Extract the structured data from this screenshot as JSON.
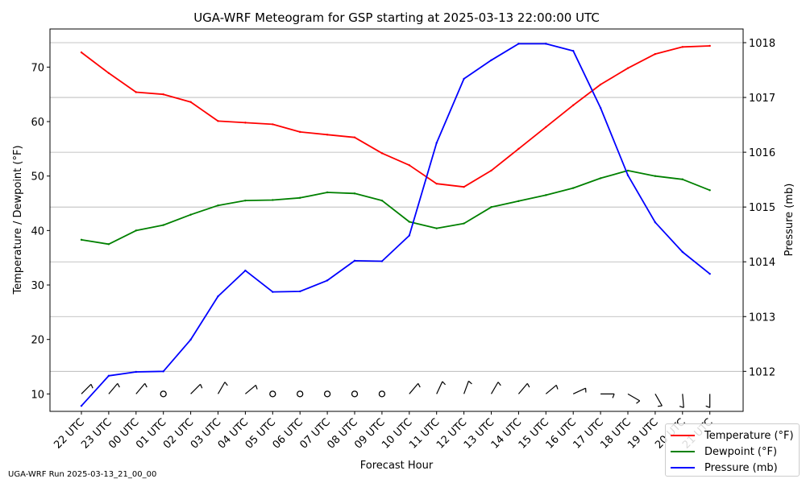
{
  "chart_data": {
    "type": "line",
    "title": "UGA-WRF Meteogram for GSP starting at 2025-03-13 22:00:00 UTC",
    "xlabel": "Forecast Hour",
    "ylabel_left": "Temperature / Dewpoint (°F)",
    "ylabel_right": "Pressure (mb)",
    "ylim_left": [
      6.8,
      77
    ],
    "ylim_right": [
      1011.27,
      1018.25
    ],
    "yticks_left": [
      10,
      20,
      30,
      40,
      50,
      60,
      70
    ],
    "yticks_right": [
      1012,
      1013,
      1014,
      1015,
      1016,
      1017,
      1018
    ],
    "grid": "horizontal (right axis)",
    "legend_position": "bottom-right",
    "categories": [
      "22 UTC",
      "23 UTC",
      "00 UTC",
      "01 UTC",
      "02 UTC",
      "03 UTC",
      "04 UTC",
      "05 UTC",
      "06 UTC",
      "07 UTC",
      "08 UTC",
      "09 UTC",
      "10 UTC",
      "11 UTC",
      "12 UTC",
      "13 UTC",
      "14 UTC",
      "15 UTC",
      "16 UTC",
      "17 UTC",
      "18 UTC",
      "19 UTC",
      "20 UTC",
      "21 UTC"
    ],
    "series": [
      {
        "name": "Temperature (°F)",
        "axis": "left",
        "color": "#ff0000",
        "values": [
          72.7,
          68.9,
          65.4,
          65.0,
          63.6,
          60.1,
          59.8,
          59.5,
          58.1,
          57.6,
          57.1,
          54.2,
          52.0,
          48.6,
          48.0,
          51.0,
          55.0,
          59.0,
          63.0,
          66.8,
          69.8,
          72.4,
          73.7,
          73.9
        ]
      },
      {
        "name": "Dewpoint (°F)",
        "axis": "left",
        "color": "#008000",
        "values": [
          38.3,
          37.5,
          40.0,
          41.0,
          42.9,
          44.6,
          45.5,
          45.6,
          46.0,
          47.0,
          46.8,
          45.5,
          41.6,
          40.4,
          41.3,
          44.3,
          45.4,
          46.5,
          47.8,
          49.6,
          51.0,
          50.0,
          49.4,
          47.4
        ]
      },
      {
        "name": "Pressure (mb)",
        "axis": "right",
        "color": "#0000ff",
        "values": [
          1011.37,
          1011.92,
          1011.99,
          1012.0,
          1012.58,
          1013.37,
          1013.84,
          1013.45,
          1013.46,
          1013.66,
          1014.02,
          1014.01,
          1014.48,
          1016.17,
          1017.34,
          1017.68,
          1017.98,
          1017.98,
          1017.85,
          1016.81,
          1015.58,
          1014.72,
          1014.18,
          1013.78
        ]
      }
    ],
    "wind_barbs": [
      {
        "dir": 225,
        "speed": 5
      },
      {
        "dir": 220,
        "speed": 5
      },
      {
        "dir": 220,
        "speed": 5
      },
      {
        "dir": 0,
        "speed": 0
      },
      {
        "dir": 225,
        "speed": 5
      },
      {
        "dir": 210,
        "speed": 5
      },
      {
        "dir": 230,
        "speed": 5
      },
      {
        "dir": 0,
        "speed": 0
      },
      {
        "dir": 0,
        "speed": 0
      },
      {
        "dir": 0,
        "speed": 0
      },
      {
        "dir": 0,
        "speed": 0
      },
      {
        "dir": 0,
        "speed": 0
      },
      {
        "dir": 220,
        "speed": 5
      },
      {
        "dir": 205,
        "speed": 5
      },
      {
        "dir": 200,
        "speed": 5
      },
      {
        "dir": 210,
        "speed": 5
      },
      {
        "dir": 220,
        "speed": 5
      },
      {
        "dir": 230,
        "speed": 5
      },
      {
        "dir": 245,
        "speed": 5
      },
      {
        "dir": 270,
        "speed": 5
      },
      {
        "dir": 300,
        "speed": 5
      },
      {
        "dir": 330,
        "speed": 5
      },
      {
        "dir": 355,
        "speed": 5
      },
      {
        "dir": 0,
        "speed": 5
      }
    ]
  },
  "footer": {
    "run_label": "UGA-WRF Run 2025-03-13_21_00_00"
  },
  "colors": {
    "temperature": "#ff0000",
    "dewpoint": "#008000",
    "pressure": "#0000ff",
    "grid": "#b0b0b0",
    "axes": "#000000"
  }
}
